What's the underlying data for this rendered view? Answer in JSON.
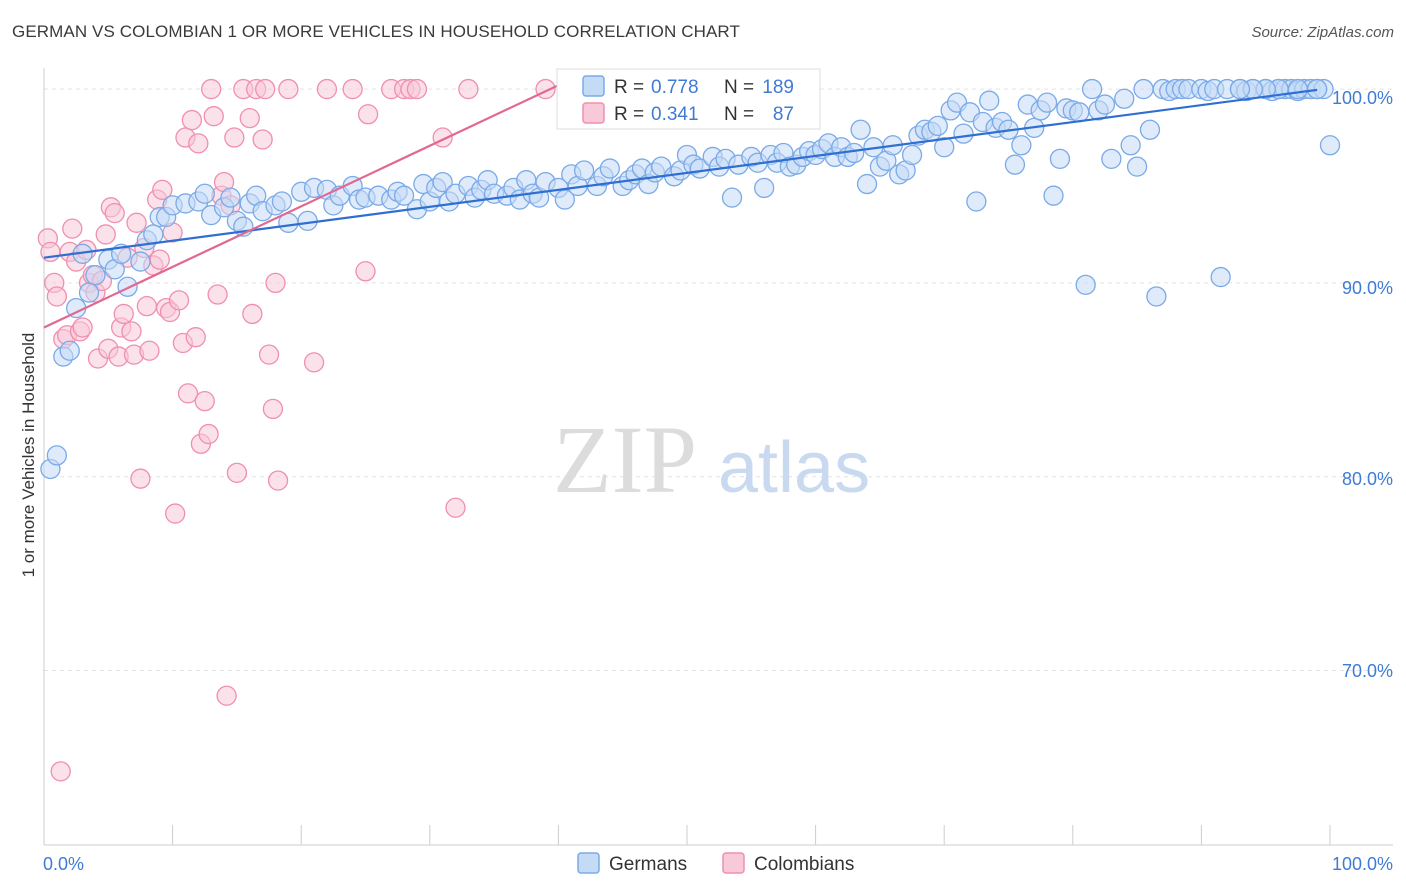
{
  "chart_data": {
    "type": "scatter",
    "title": "GERMAN VS COLOMBIAN 1 OR MORE VEHICLES IN HOUSEHOLD CORRELATION CHART",
    "source": "Source: ZipAtlas.com",
    "xlabel": "",
    "ylabel": "1 or more Vehicles in Household",
    "xlim": [
      0,
      100
    ],
    "ylim": [
      61,
      101.5
    ],
    "x_tick_labels": [
      "0.0%",
      "100.0%"
    ],
    "y_ticks": [
      70,
      80,
      90,
      100
    ],
    "y_tick_labels": [
      "70.0%",
      "80.0%",
      "90.0%",
      "100.0%"
    ],
    "watermark": {
      "zip": "ZIP",
      "atlas": "atlas"
    },
    "legend_box": [
      {
        "r_label": "R =",
        "r_value": "0.778",
        "n_label": "N =",
        "n_value": "189"
      },
      {
        "r_label": "R =",
        "r_value": "0.341",
        "n_label": "N =",
        "n_value": "87"
      }
    ],
    "series": [
      {
        "name": "Germans",
        "color": "#7aaae8",
        "fill": "#c4dbf6",
        "trend_color": "#2f6fd1",
        "trend": {
          "x": [
            0,
            99
          ],
          "y": [
            91.3,
            99.96
          ]
        },
        "points": [
          [
            0.5,
            80.4
          ],
          [
            1,
            81.1
          ],
          [
            1.5,
            86.2
          ],
          [
            2,
            86.5
          ],
          [
            2.5,
            88.7
          ],
          [
            3,
            91.5
          ],
          [
            3.5,
            89.5
          ],
          [
            4,
            90.4
          ],
          [
            5,
            91.2
          ],
          [
            5.5,
            90.7
          ],
          [
            6,
            91.5
          ],
          [
            6.5,
            89.8
          ],
          [
            7.5,
            91.1
          ],
          [
            8,
            92.2
          ],
          [
            8.5,
            92.5
          ],
          [
            9,
            93.4
          ],
          [
            9.5,
            93.4
          ],
          [
            10,
            94.0
          ],
          [
            11,
            94.1
          ],
          [
            12,
            94.2
          ],
          [
            12.5,
            94.6
          ],
          [
            13,
            93.5
          ],
          [
            14,
            93.9
          ],
          [
            14.5,
            94.4
          ],
          [
            15,
            93.2
          ],
          [
            15.5,
            92.9
          ],
          [
            16,
            94.1
          ],
          [
            16.5,
            94.5
          ],
          [
            17,
            93.7
          ],
          [
            18,
            94.0
          ],
          [
            18.5,
            94.2
          ],
          [
            19,
            93.1
          ],
          [
            20,
            94.7
          ],
          [
            20.5,
            93.2
          ],
          [
            21,
            94.9
          ],
          [
            22,
            94.8
          ],
          [
            22.5,
            94.0
          ],
          [
            23,
            94.5
          ],
          [
            24,
            95.0
          ],
          [
            24.5,
            94.3
          ],
          [
            25,
            94.4
          ],
          [
            26,
            94.5
          ],
          [
            27,
            94.3
          ],
          [
            27.5,
            94.7
          ],
          [
            28,
            94.5
          ],
          [
            29,
            93.8
          ],
          [
            29.5,
            95.1
          ],
          [
            30,
            94.2
          ],
          [
            30.5,
            94.9
          ],
          [
            31,
            95.2
          ],
          [
            31.5,
            94.2
          ],
          [
            32,
            94.6
          ],
          [
            33,
            95.0
          ],
          [
            33.5,
            94.4
          ],
          [
            34,
            94.8
          ],
          [
            34.5,
            95.3
          ],
          [
            35,
            94.6
          ],
          [
            36,
            94.5
          ],
          [
            36.5,
            94.9
          ],
          [
            37,
            94.3
          ],
          [
            37.5,
            95.3
          ],
          [
            38,
            94.6
          ],
          [
            38.5,
            94.4
          ],
          [
            39,
            95.2
          ],
          [
            40,
            94.9
          ],
          [
            40.5,
            94.3
          ],
          [
            41,
            95.6
          ],
          [
            41.5,
            95.0
          ],
          [
            42,
            95.8
          ],
          [
            43,
            95.0
          ],
          [
            43.5,
            95.5
          ],
          [
            44,
            95.9
          ],
          [
            45,
            95.0
          ],
          [
            45.5,
            95.3
          ],
          [
            46,
            95.6
          ],
          [
            46.5,
            95.9
          ],
          [
            47,
            95.1
          ],
          [
            47.5,
            95.7
          ],
          [
            48,
            96.0
          ],
          [
            49,
            95.5
          ],
          [
            49.5,
            95.8
          ],
          [
            50,
            96.6
          ],
          [
            50.5,
            96.1
          ],
          [
            51,
            95.9
          ],
          [
            52,
            96.5
          ],
          [
            52.5,
            96.0
          ],
          [
            53,
            96.4
          ],
          [
            53.5,
            94.4
          ],
          [
            54,
            96.1
          ],
          [
            55,
            96.5
          ],
          [
            55.5,
            96.2
          ],
          [
            56,
            94.9
          ],
          [
            56.5,
            96.6
          ],
          [
            57,
            96.2
          ],
          [
            57.5,
            96.7
          ],
          [
            58,
            96.0
          ],
          [
            58.5,
            96.1
          ],
          [
            59,
            96.5
          ],
          [
            59.5,
            96.8
          ],
          [
            60,
            96.6
          ],
          [
            60.5,
            96.9
          ],
          [
            61,
            97.2
          ],
          [
            61.5,
            96.5
          ],
          [
            62,
            97.0
          ],
          [
            62.5,
            96.5
          ],
          [
            63,
            96.7
          ],
          [
            63.5,
            97.9
          ],
          [
            64,
            95.1
          ],
          [
            64.5,
            97.0
          ],
          [
            65,
            96.0
          ],
          [
            65.5,
            96.3
          ],
          [
            66,
            97.1
          ],
          [
            66.5,
            95.6
          ],
          [
            67,
            95.8
          ],
          [
            67.5,
            96.6
          ],
          [
            68,
            97.6
          ],
          [
            68.5,
            97.9
          ],
          [
            69,
            97.8
          ],
          [
            69.5,
            98.1
          ],
          [
            70,
            97.0
          ],
          [
            70.5,
            98.9
          ],
          [
            71,
            99.3
          ],
          [
            71.5,
            97.7
          ],
          [
            72,
            98.8
          ],
          [
            72.5,
            94.2
          ],
          [
            73,
            98.3
          ],
          [
            73.5,
            99.4
          ],
          [
            74,
            98.0
          ],
          [
            74.5,
            98.3
          ],
          [
            75,
            97.9
          ],
          [
            75.5,
            96.1
          ],
          [
            76,
            97.1
          ],
          [
            76.5,
            99.2
          ],
          [
            77,
            98.0
          ],
          [
            77.5,
            98.9
          ],
          [
            78,
            99.3
          ],
          [
            78.5,
            94.5
          ],
          [
            79,
            96.4
          ],
          [
            79.5,
            99.0
          ],
          [
            80,
            98.9
          ],
          [
            80.5,
            98.8
          ],
          [
            81,
            89.9
          ],
          [
            81.5,
            100
          ],
          [
            82,
            98.9
          ],
          [
            82.5,
            99.2
          ],
          [
            83,
            96.4
          ],
          [
            84,
            99.5
          ],
          [
            84.5,
            97.1
          ],
          [
            85,
            96.0
          ],
          [
            85.5,
            100
          ],
          [
            86,
            97.9
          ],
          [
            86.5,
            89.3
          ],
          [
            87,
            100
          ],
          [
            87.5,
            99.9
          ],
          [
            88,
            100
          ],
          [
            88.5,
            100
          ],
          [
            89,
            100
          ],
          [
            90,
            100
          ],
          [
            90.5,
            99.9
          ],
          [
            91,
            100
          ],
          [
            91.5,
            90.3
          ],
          [
            92,
            100
          ],
          [
            93,
            100
          ],
          [
            93.5,
            99.9
          ],
          [
            94,
            100
          ],
          [
            95,
            100
          ],
          [
            95.5,
            99.9
          ],
          [
            96,
            100
          ],
          [
            96.5,
            100
          ],
          [
            97,
            100
          ],
          [
            97.5,
            99.9
          ],
          [
            98,
            100
          ],
          [
            98.5,
            100
          ],
          [
            99,
            100
          ],
          [
            99.5,
            100
          ],
          [
            100,
            97.1
          ],
          [
            96,
            100
          ],
          [
            97.5,
            100
          ],
          [
            99,
            100
          ],
          [
            95,
            100
          ],
          [
            94,
            100
          ],
          [
            93,
            100
          ]
        ]
      },
      {
        "name": "Colombians",
        "color": "#f08fae",
        "fill": "#f8c9d8",
        "trend_color": "#e06891",
        "trend": {
          "x": [
            0,
            40
          ],
          "y": [
            87.7,
            100.2
          ]
        },
        "points": [
          [
            0.3,
            92.3
          ],
          [
            0.5,
            91.6
          ],
          [
            0.8,
            90.0
          ],
          [
            1,
            89.3
          ],
          [
            1.3,
            64.8
          ],
          [
            1.5,
            87.1
          ],
          [
            1.8,
            87.3
          ],
          [
            2,
            91.6
          ],
          [
            2.2,
            92.8
          ],
          [
            2.5,
            91.1
          ],
          [
            2.8,
            87.5
          ],
          [
            3,
            87.7
          ],
          [
            3.3,
            91.7
          ],
          [
            3.5,
            90.0
          ],
          [
            3.8,
            90.4
          ],
          [
            4,
            89.5
          ],
          [
            4.2,
            86.1
          ],
          [
            4.5,
            90.1
          ],
          [
            4.8,
            92.5
          ],
          [
            5,
            86.6
          ],
          [
            5.2,
            93.9
          ],
          [
            5.5,
            93.6
          ],
          [
            5.8,
            86.2
          ],
          [
            6,
            87.7
          ],
          [
            6.2,
            88.4
          ],
          [
            6.5,
            91.3
          ],
          [
            6.8,
            87.5
          ],
          [
            7,
            86.3
          ],
          [
            7.2,
            93.1
          ],
          [
            7.5,
            79.9
          ],
          [
            7.8,
            91.8
          ],
          [
            8,
            88.8
          ],
          [
            8.2,
            86.5
          ],
          [
            8.5,
            90.9
          ],
          [
            8.8,
            94.3
          ],
          [
            9,
            91.2
          ],
          [
            9.2,
            94.8
          ],
          [
            9.5,
            88.7
          ],
          [
            9.8,
            88.5
          ],
          [
            10,
            92.6
          ],
          [
            10.2,
            78.1
          ],
          [
            10.5,
            89.1
          ],
          [
            10.8,
            86.9
          ],
          [
            11,
            97.5
          ],
          [
            11.2,
            84.3
          ],
          [
            11.5,
            98.4
          ],
          [
            11.8,
            87.2
          ],
          [
            12,
            97.2
          ],
          [
            12.2,
            81.7
          ],
          [
            12.5,
            83.9
          ],
          [
            12.8,
            82.2
          ],
          [
            13,
            100
          ],
          [
            13.2,
            98.6
          ],
          [
            13.5,
            89.4
          ],
          [
            13.8,
            94.5
          ],
          [
            14,
            95.2
          ],
          [
            14.2,
            68.7
          ],
          [
            14.5,
            94.0
          ],
          [
            14.8,
            97.5
          ],
          [
            15,
            80.2
          ],
          [
            15.5,
            100
          ],
          [
            16,
            98.5
          ],
          [
            16.2,
            88.4
          ],
          [
            16.5,
            100
          ],
          [
            17,
            97.4
          ],
          [
            17.2,
            100
          ],
          [
            17.5,
            86.3
          ],
          [
            17.8,
            83.5
          ],
          [
            18,
            90.0
          ],
          [
            18.2,
            79.8
          ],
          [
            19,
            100
          ],
          [
            21,
            85.9
          ],
          [
            22,
            100
          ],
          [
            24,
            100
          ],
          [
            25,
            90.6
          ],
          [
            25.2,
            98.7
          ],
          [
            27,
            100
          ],
          [
            28,
            100
          ],
          [
            28.5,
            100
          ],
          [
            29,
            100
          ],
          [
            31,
            97.5
          ],
          [
            32,
            78.4
          ],
          [
            33,
            100
          ],
          [
            39,
            100
          ]
        ]
      }
    ]
  }
}
